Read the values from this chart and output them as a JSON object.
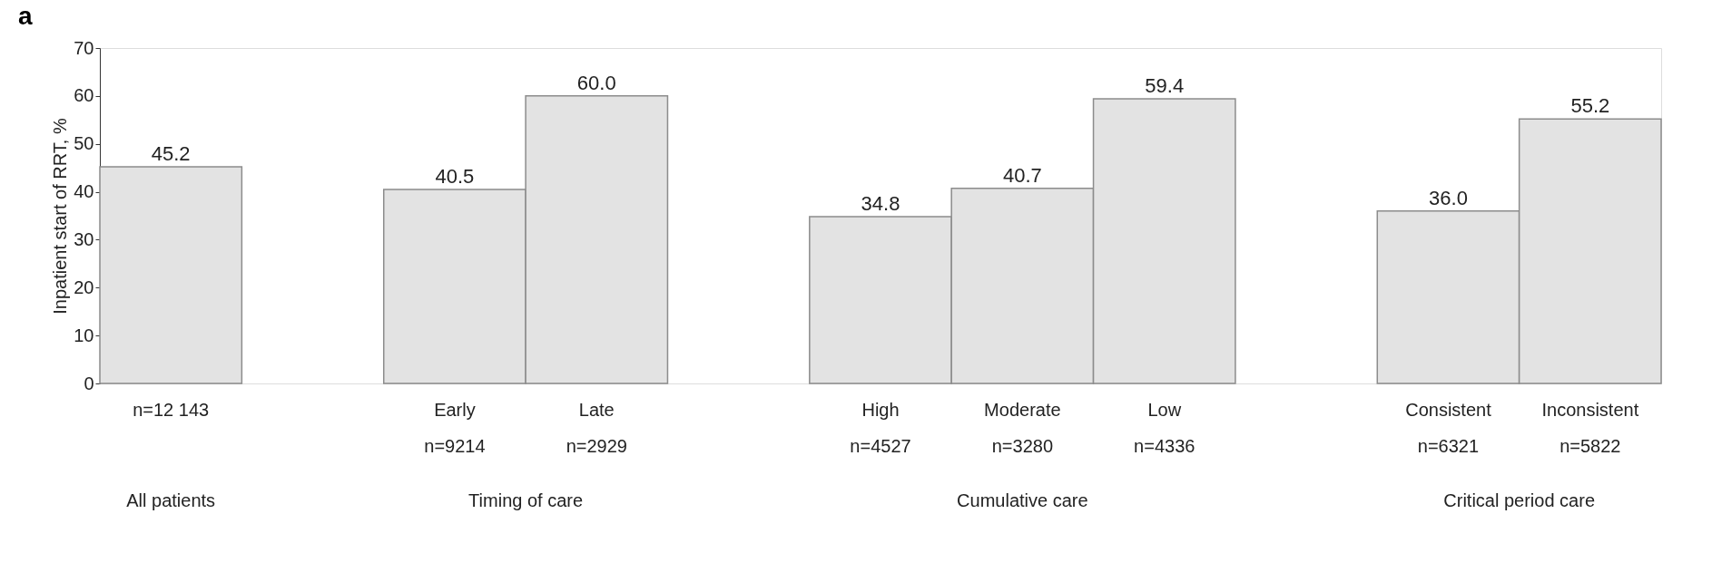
{
  "chart_data": {
    "type": "bar",
    "title": "a",
    "ylabel": "Inpatient start of RRT, %",
    "categories": [
      "n=12 143",
      null,
      "Early\nn=9214",
      "Late\nn=2929",
      null,
      "High\nn=4527",
      "Moderate\nn=3280",
      "Low\nn=4336",
      null,
      "Consistent\nn=6321",
      "Inconsistent\nn=5822"
    ],
    "values": [
      45.2,
      null,
      40.5,
      60.0,
      null,
      34.8,
      40.7,
      59.4,
      null,
      36.0,
      55.2
    ],
    "value_labels": [
      "45.2",
      null,
      "40.5",
      "60.0",
      null,
      "34.8",
      "40.7",
      "59.4",
      null,
      "36.0",
      "55.2"
    ],
    "color": "#e3e3e3",
    "annotations": [
      "All patients",
      "Timing of care",
      "Cumulative care",
      "Critical period care"
    ],
    "ylim": [
      0,
      70
    ],
    "yticks": [
      0,
      10,
      20,
      30,
      40,
      50,
      60,
      70
    ],
    "grid": false
  }
}
